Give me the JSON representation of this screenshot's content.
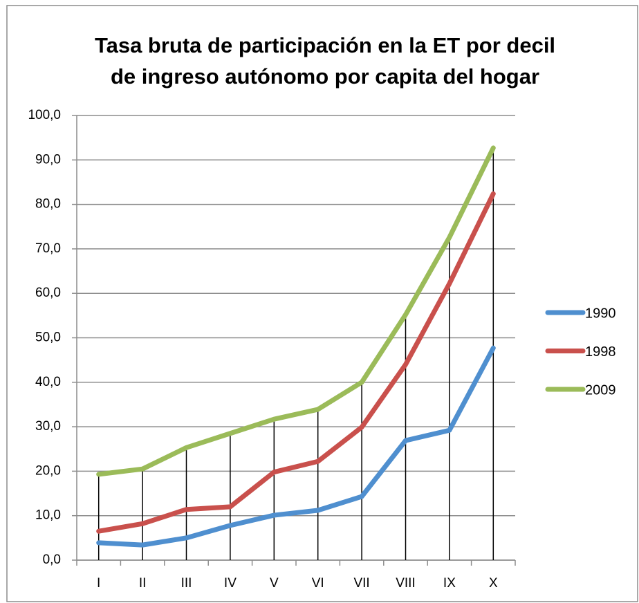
{
  "chart_data": {
    "type": "line",
    "title": [
      "Tasa bruta de participación en la ET por decil",
      "de ingreso autónomo por capita del hogar"
    ],
    "categories": [
      "I",
      "II",
      "III",
      "IV",
      "V",
      "VI",
      "VII",
      "VIII",
      "IX",
      "X"
    ],
    "series": [
      {
        "name": "1990",
        "color": "#4f8fcf",
        "values": [
          3.9,
          3.4,
          5.0,
          7.8,
          10.1,
          11.2,
          14.3,
          26.9,
          29.2,
          47.7
        ]
      },
      {
        "name": "1998",
        "color": "#c9504c",
        "values": [
          6.5,
          8.2,
          11.4,
          12.0,
          19.8,
          22.2,
          29.9,
          44.0,
          62.2,
          82.4
        ]
      },
      {
        "name": "2009",
        "color": "#9bbb59",
        "values": [
          19.3,
          20.5,
          25.3,
          28.5,
          31.7,
          33.9,
          40.0,
          55.2,
          72.6,
          92.7
        ]
      }
    ],
    "ylim": [
      0,
      100
    ],
    "yticks": [
      {
        "value": 0,
        "label": "0,0"
      },
      {
        "value": 10,
        "label": "10,0"
      },
      {
        "value": 20,
        "label": "20,0"
      },
      {
        "value": 30,
        "label": "30,0"
      },
      {
        "value": 40,
        "label": "40,0"
      },
      {
        "value": 50,
        "label": "50,0"
      },
      {
        "value": 60,
        "label": "60,0"
      },
      {
        "value": 70,
        "label": "70,0"
      },
      {
        "value": 80,
        "label": "80,0"
      },
      {
        "value": 90,
        "label": "90,0"
      },
      {
        "value": 100,
        "label": "100,0"
      }
    ],
    "grid": true,
    "drop_lines": true,
    "legend": "right"
  }
}
